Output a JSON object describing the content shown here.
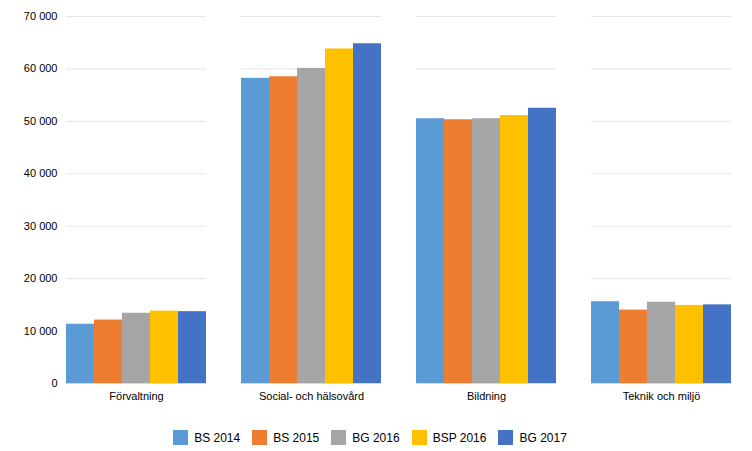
{
  "chart_data": {
    "type": "bar",
    "categories": [
      "Förvaltning",
      "Social- och hälsovård",
      "Bildning",
      "Teknik och miljö"
    ],
    "series": [
      {
        "name": "BS 2014",
        "color": "#5B9BD5",
        "values": [
          11300,
          58200,
          50500,
          15600
        ]
      },
      {
        "name": "BS 2015",
        "color": "#ED7D31",
        "values": [
          12100,
          58500,
          50300,
          14000
        ]
      },
      {
        "name": "BG 2016",
        "color": "#A5A5A5",
        "values": [
          13400,
          60100,
          50500,
          15500
        ]
      },
      {
        "name": "BSP 2016",
        "color": "#FFC000",
        "values": [
          13800,
          63800,
          51100,
          14900
        ]
      },
      {
        "name": "BG 2017",
        "color": "#4472C4",
        "values": [
          13700,
          64800,
          52500,
          15000
        ]
      }
    ],
    "ylim": [
      0,
      70000
    ],
    "yticks": [
      0,
      {
        "value": 10000,
        "label": "10 000"
      },
      {
        "value": 20000,
        "label": "20 000"
      },
      {
        "value": 30000,
        "label": "30 000"
      },
      {
        "value": 40000,
        "label": "40 000"
      },
      {
        "value": 50000,
        "label": "50 000"
      },
      {
        "value": 60000,
        "label": "60 000"
      },
      {
        "value": 70000,
        "label": "70 000"
      }
    ],
    "grid": true,
    "legend": "bottom"
  }
}
